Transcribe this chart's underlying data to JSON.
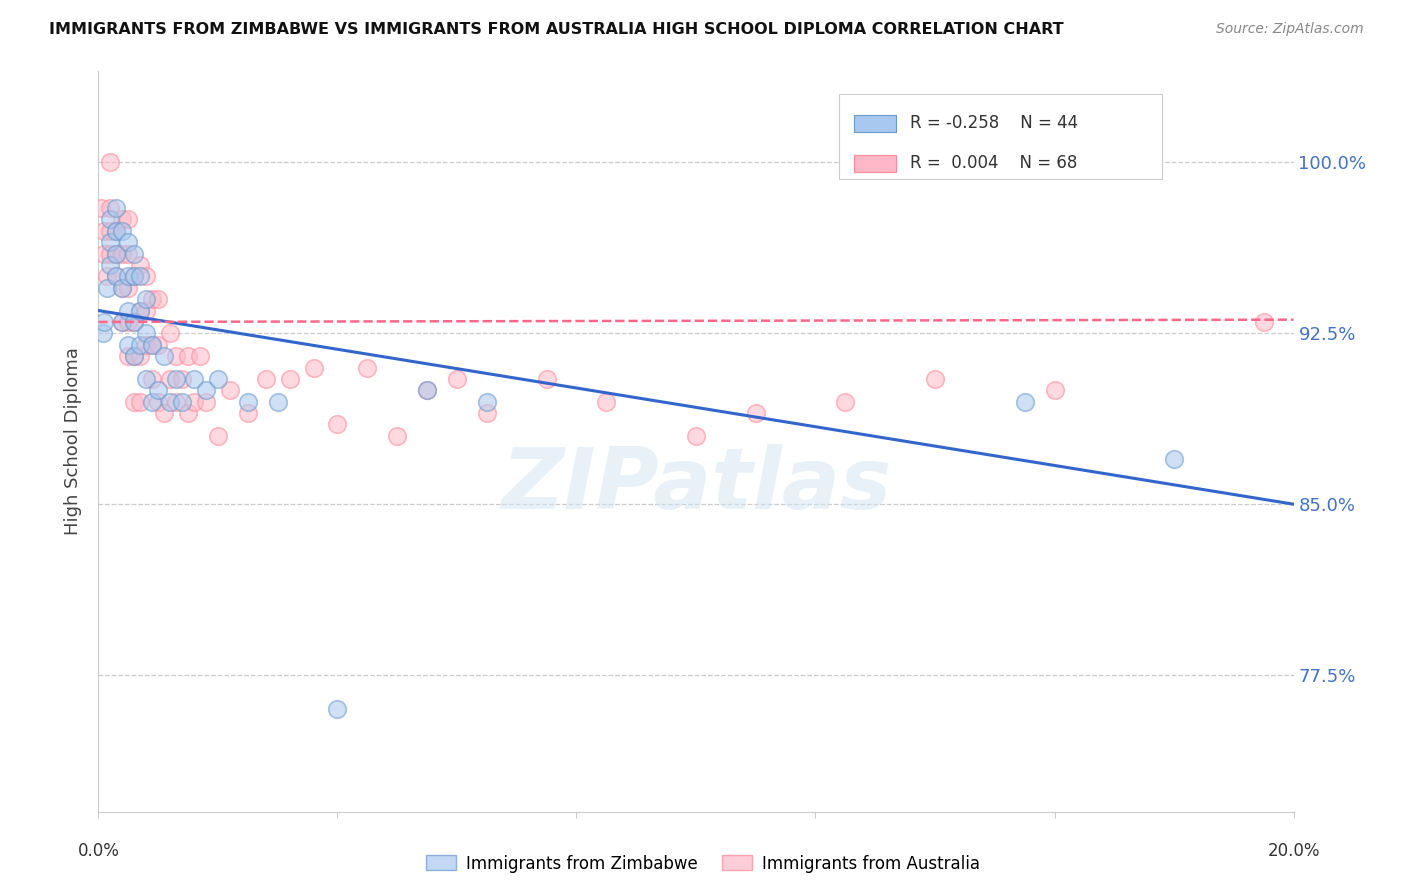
{
  "title": "IMMIGRANTS FROM ZIMBABWE VS IMMIGRANTS FROM AUSTRALIA HIGH SCHOOL DIPLOMA CORRELATION CHART",
  "source": "Source: ZipAtlas.com",
  "ylabel": "High School Diploma",
  "ytick_labels": [
    "100.0%",
    "92.5%",
    "85.0%",
    "77.5%"
  ],
  "ytick_values": [
    1.0,
    0.925,
    0.85,
    0.775
  ],
  "xlim": [
    0.0,
    0.2
  ],
  "ylim": [
    0.715,
    1.04
  ],
  "color_zimbabwe_fill": "#A8C8F0",
  "color_zimbabwe_edge": "#6699CC",
  "color_australia_fill": "#FFB8C8",
  "color_australia_edge": "#FF8899",
  "color_line_zimbabwe": "#3366CC",
  "color_line_australia": "#FF6688",
  "watermark_text": "ZIPatlas",
  "legend_r1": "R = -0.258",
  "legend_n1": "N = 44",
  "legend_r2": "R =  0.004",
  "legend_n2": "N = 68",
  "trend_zimbabwe_x0": 0.0,
  "trend_zimbabwe_y0": 0.935,
  "trend_zimbabwe_x1": 0.2,
  "trend_zimbabwe_y1": 0.85,
  "trend_australia_x0": 0.0,
  "trend_australia_y0": 0.93,
  "trend_australia_x1": 0.2,
  "trend_australia_y1": 0.931,
  "zimbabwe_scatter_x": [
    0.0008,
    0.001,
    0.0015,
    0.002,
    0.002,
    0.002,
    0.003,
    0.003,
    0.003,
    0.003,
    0.004,
    0.004,
    0.004,
    0.005,
    0.005,
    0.005,
    0.005,
    0.006,
    0.006,
    0.006,
    0.006,
    0.007,
    0.007,
    0.007,
    0.008,
    0.008,
    0.008,
    0.009,
    0.009,
    0.01,
    0.011,
    0.012,
    0.013,
    0.014,
    0.016,
    0.018,
    0.02,
    0.025,
    0.03,
    0.04,
    0.055,
    0.065,
    0.155,
    0.18
  ],
  "zimbabwe_scatter_y": [
    0.925,
    0.93,
    0.945,
    0.955,
    0.965,
    0.975,
    0.95,
    0.96,
    0.97,
    0.98,
    0.93,
    0.945,
    0.97,
    0.92,
    0.935,
    0.95,
    0.965,
    0.915,
    0.93,
    0.95,
    0.96,
    0.92,
    0.935,
    0.95,
    0.905,
    0.925,
    0.94,
    0.895,
    0.92,
    0.9,
    0.915,
    0.895,
    0.905,
    0.895,
    0.905,
    0.9,
    0.905,
    0.895,
    0.895,
    0.76,
    0.9,
    0.895,
    0.895,
    0.87
  ],
  "australia_scatter_x": [
    0.0005,
    0.001,
    0.001,
    0.0015,
    0.002,
    0.002,
    0.002,
    0.002,
    0.003,
    0.003,
    0.003,
    0.004,
    0.004,
    0.004,
    0.004,
    0.005,
    0.005,
    0.005,
    0.005,
    0.005,
    0.006,
    0.006,
    0.006,
    0.006,
    0.007,
    0.007,
    0.007,
    0.007,
    0.008,
    0.008,
    0.008,
    0.009,
    0.009,
    0.009,
    0.01,
    0.01,
    0.01,
    0.011,
    0.012,
    0.012,
    0.013,
    0.013,
    0.014,
    0.015,
    0.015,
    0.016,
    0.017,
    0.018,
    0.02,
    0.022,
    0.025,
    0.028,
    0.032,
    0.036,
    0.04,
    0.045,
    0.05,
    0.055,
    0.06,
    0.065,
    0.075,
    0.085,
    0.1,
    0.11,
    0.125,
    0.14,
    0.16,
    0.195
  ],
  "australia_scatter_y": [
    0.98,
    0.96,
    0.97,
    0.95,
    0.96,
    0.97,
    0.98,
    1.0,
    0.95,
    0.96,
    0.97,
    0.93,
    0.945,
    0.96,
    0.975,
    0.915,
    0.93,
    0.945,
    0.96,
    0.975,
    0.895,
    0.915,
    0.93,
    0.95,
    0.895,
    0.915,
    0.935,
    0.955,
    0.92,
    0.935,
    0.95,
    0.905,
    0.92,
    0.94,
    0.895,
    0.92,
    0.94,
    0.89,
    0.905,
    0.925,
    0.895,
    0.915,
    0.905,
    0.89,
    0.915,
    0.895,
    0.915,
    0.895,
    0.88,
    0.9,
    0.89,
    0.905,
    0.905,
    0.91,
    0.885,
    0.91,
    0.88,
    0.9,
    0.905,
    0.89,
    0.905,
    0.895,
    0.88,
    0.89,
    0.895,
    0.905,
    0.9,
    0.93
  ],
  "xtick_positions": [
    0.0,
    0.04,
    0.08,
    0.12,
    0.16,
    0.2
  ],
  "xtick_labels_show": [
    "0.0%",
    "",
    "",
    "",
    "",
    "20.0%"
  ]
}
